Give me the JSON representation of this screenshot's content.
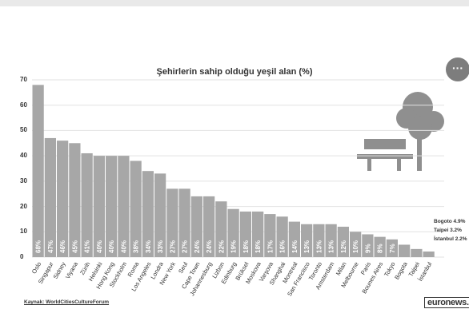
{
  "chart_data": {
    "type": "bar",
    "title": "Şehirlerin sahip olduğu yeşil alan (%)",
    "ylim": [
      0,
      70
    ],
    "yticks": [
      0,
      10,
      20,
      30,
      40,
      50,
      60,
      70
    ],
    "categories": [
      "Oslo",
      "Singapur",
      "Sidney",
      "Viyana",
      "Zürih",
      "Helsinki",
      "Hong Kong",
      "Stockholm",
      "Roma",
      "Los Angeles",
      "Londra",
      "New York",
      "Seul",
      "Cape Town",
      "Johannesburg",
      "Lizbon",
      "Edinburg",
      "Brüksel",
      "Moskova",
      "Varşova",
      "Shanghai",
      "Montreal",
      "San Francisco",
      "Toronto",
      "Amsterdam",
      "Milan",
      "Melbourne",
      "Paris",
      "Bounes Aires",
      "Tokyo",
      "Bogota",
      "Taipei",
      "İstanbul"
    ],
    "values": [
      68,
      47,
      46,
      45,
      41,
      40,
      40,
      40,
      38,
      34,
      33,
      27,
      27,
      24,
      24,
      22,
      19,
      18,
      18,
      17,
      16,
      14,
      13,
      13,
      13,
      12,
      10,
      9,
      8,
      7,
      4.9,
      3.2,
      2.2
    ],
    "value_labels": [
      "68%",
      "47%",
      "46%",
      "45%",
      "41%",
      "40%",
      "40%",
      "40%",
      "38%",
      "34%",
      "33%",
      "27%",
      "27%",
      "24%",
      "24%",
      "22%",
      "19%",
      "18%",
      "18%",
      "17%",
      "16%",
      "14%",
      "13%",
      "13%",
      "13%",
      "12%",
      "10%",
      "9%",
      "8%",
      "7%",
      "",
      "",
      ""
    ],
    "notes": [
      "Bogoto 4.9%",
      "Taipei  3.2%",
      "İstanbul 2.2%"
    ],
    "grid": true,
    "bar_color": "#a7a7a7"
  },
  "menu_label": "···",
  "source": "Kaynak: WorldCitiesCultureForum",
  "brand": "euronews."
}
